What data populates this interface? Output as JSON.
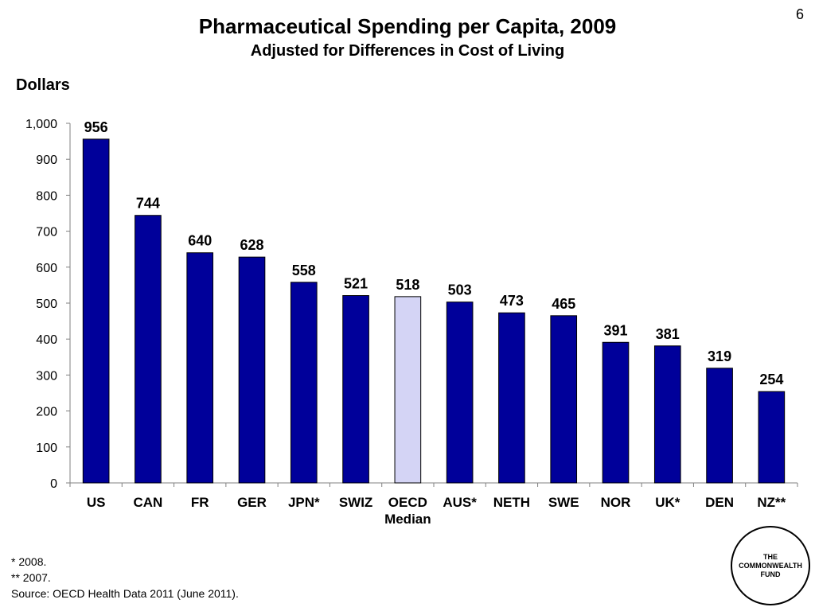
{
  "page_number": "6",
  "colors": {
    "bar": "#00009a",
    "highlight": "#d4d4f5",
    "outline": "#000000"
  },
  "notes": [
    "* 2008.",
    "** 2007.",
    "Source: OECD Health Data 2011 (June 2011)."
  ],
  "logo": [
    "THE",
    "COMMONWEALTH",
    "FUND"
  ],
  "chart_data": {
    "type": "bar",
    "title": "Pharmaceutical Spending per Capita, 2009",
    "subtitle": "Adjusted for Differences in Cost of Living",
    "ylabel": "Dollars",
    "xlabel": "",
    "categories": [
      "US",
      "CAN",
      "FR",
      "GER",
      "JPN*",
      "SWIZ",
      "OECD Median",
      "AUS*",
      "NETH",
      "SWE",
      "NOR",
      "UK*",
      "DEN",
      "NZ**"
    ],
    "values": [
      956,
      744,
      640,
      628,
      558,
      521,
      518,
      503,
      473,
      465,
      391,
      381,
      319,
      254
    ],
    "highlight_category": "OECD Median",
    "ylim": [
      0,
      1000
    ],
    "yticks": [
      0,
      100,
      200,
      300,
      400,
      500,
      600,
      700,
      800,
      900,
      1000
    ],
    "ytick_labels": [
      "0",
      "100",
      "200",
      "300",
      "400",
      "500",
      "600",
      "700",
      "800",
      "900",
      "1,000"
    ],
    "grid": false,
    "legend": "none"
  }
}
